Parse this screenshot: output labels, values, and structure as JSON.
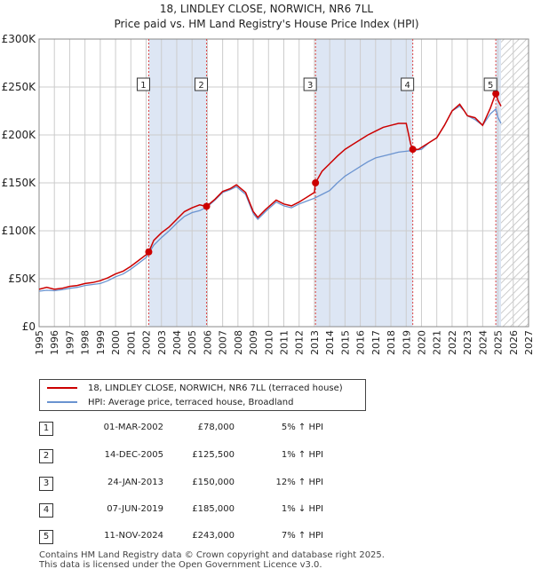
{
  "header": {
    "title": "18, LINDLEY CLOSE, NORWICH, NR6 7LL",
    "subtitle": "Price paid vs. HM Land Registry's House Price Index (HPI)"
  },
  "legend": {
    "property": "18, LINDLEY CLOSE, NORWICH, NR6 7LL (terraced house)",
    "hpi": "HPI: Average price, terraced house, Broadland"
  },
  "colors": {
    "property": "#cc0000",
    "hpi": "#6a93d0",
    "band": "#dde6f4",
    "grid": "#cccccc"
  },
  "transactions": [
    {
      "n": "1",
      "date": "01-MAR-2002",
      "price": "£78,000",
      "hpi": "5% ↑ HPI"
    },
    {
      "n": "2",
      "date": "14-DEC-2005",
      "price": "£125,500",
      "hpi": "1% ↑ HPI"
    },
    {
      "n": "3",
      "date": "24-JAN-2013",
      "price": "£150,000",
      "hpi": "12% ↑ HPI"
    },
    {
      "n": "4",
      "date": "07-JUN-2019",
      "price": "£185,000",
      "hpi": "1% ↓ HPI"
    },
    {
      "n": "5",
      "date": "11-NOV-2024",
      "price": "£243,000",
      "hpi": "7% ↑ HPI"
    }
  ],
  "footer": {
    "line1": "Contains HM Land Registry data © Crown copyright and database right 2025.",
    "line2": "This data is licensed under the Open Government Licence v3.0."
  },
  "chart_data": {
    "type": "line",
    "title": "18, LINDLEY CLOSE, NORWICH, NR6 7LL",
    "xlabel": "",
    "ylabel": "",
    "xlim": [
      1995,
      2027
    ],
    "ylim": [
      0,
      300000
    ],
    "x_ticks": [
      "1995",
      "1996",
      "1997",
      "1998",
      "1999",
      "2000",
      "2001",
      "2002",
      "2003",
      "2004",
      "2005",
      "2006",
      "2007",
      "2008",
      "2009",
      "2010",
      "2011",
      "2012",
      "2013",
      "2014",
      "2015",
      "2016",
      "2017",
      "2018",
      "2019",
      "2020",
      "2021",
      "2022",
      "2023",
      "2024",
      "2025",
      "2026",
      "2027"
    ],
    "y_ticks": [
      {
        "value": 0,
        "label": "£0"
      },
      {
        "value": 50000,
        "label": "£50K"
      },
      {
        "value": 100000,
        "label": "£100K"
      },
      {
        "value": 150000,
        "label": "£150K"
      },
      {
        "value": 200000,
        "label": "£200K"
      },
      {
        "value": 250000,
        "label": "£250K"
      },
      {
        "value": 300000,
        "label": "£300K"
      }
    ],
    "forecast_start": 2025.2,
    "series": [
      {
        "name": "18, LINDLEY CLOSE, NORWICH, NR6 7LL (terraced house)",
        "x": [
          1995.0,
          1995.5,
          1996.0,
          1996.5,
          1997.0,
          1997.5,
          1998.0,
          1998.5,
          1999.0,
          1999.5,
          2000.0,
          2000.5,
          2001.0,
          2001.5,
          2002.0,
          2002.17,
          2002.5,
          2003.0,
          2003.5,
          2004.0,
          2004.5,
          2005.0,
          2005.5,
          2005.95,
          2006.5,
          2007.0,
          2007.5,
          2007.9,
          2008.5,
          2009.0,
          2009.3,
          2009.8,
          2010.5,
          2011.0,
          2011.5,
          2012.0,
          2012.5,
          2013.0,
          2013.07,
          2013.5,
          2014.0,
          2014.5,
          2015.0,
          2015.5,
          2016.0,
          2016.5,
          2017.0,
          2017.5,
          2018.0,
          2018.5,
          2019.0,
          2019.3,
          2019.43,
          2019.8,
          2020.5,
          2021.0,
          2021.5,
          2022.0,
          2022.5,
          2022.8,
          2023.0,
          2023.5,
          2024.0,
          2024.5,
          2024.8,
          2024.86,
          2025.0,
          2025.2
        ],
        "values": [
          39000,
          41000,
          39000,
          40000,
          42000,
          43000,
          45000,
          46000,
          48000,
          51000,
          55000,
          58000,
          63000,
          69000,
          75000,
          78000,
          90000,
          98000,
          104000,
          112000,
          120000,
          124000,
          127000,
          125500,
          133000,
          141000,
          144000,
          148000,
          140000,
          120000,
          114000,
          122000,
          132000,
          128000,
          126000,
          130000,
          135000,
          140000,
          150000,
          162000,
          170000,
          178000,
          185000,
          190000,
          195000,
          200000,
          204000,
          208000,
          210000,
          212000,
          212000,
          190000,
          185000,
          185000,
          192000,
          197000,
          210000,
          225000,
          232000,
          225000,
          220000,
          218000,
          210000,
          228000,
          241000,
          243000,
          236000,
          230000
        ]
      },
      {
        "name": "HPI: Average price, terraced house, Broadland",
        "x": [
          1995.0,
          1995.5,
          1996.0,
          1996.5,
          1997.0,
          1997.5,
          1998.0,
          1998.5,
          1999.0,
          1999.5,
          2000.0,
          2000.5,
          2001.0,
          2001.5,
          2002.0,
          2002.5,
          2003.0,
          2003.5,
          2004.0,
          2004.5,
          2005.0,
          2005.5,
          2006.0,
          2006.5,
          2007.0,
          2007.5,
          2007.9,
          2008.5,
          2009.0,
          2009.3,
          2009.8,
          2010.5,
          2011.0,
          2011.5,
          2012.0,
          2012.5,
          2013.0,
          2013.5,
          2014.0,
          2014.5,
          2015.0,
          2015.5,
          2016.0,
          2016.5,
          2017.0,
          2017.5,
          2018.0,
          2018.5,
          2019.0,
          2019.5,
          2020.0,
          2020.5,
          2021.0,
          2021.5,
          2022.0,
          2022.5,
          2022.8,
          2023.0,
          2023.5,
          2024.0,
          2024.5,
          2024.86,
          2025.0,
          2025.2
        ],
        "values": [
          37000,
          38000,
          37500,
          38500,
          40000,
          41000,
          43000,
          44000,
          45000,
          48000,
          52000,
          55000,
          60000,
          66000,
          72000,
          85000,
          93000,
          100000,
          108000,
          115000,
          119000,
          121000,
          125000,
          132000,
          140000,
          143000,
          146000,
          138000,
          118000,
          112000,
          120000,
          130000,
          126000,
          124000,
          128000,
          131000,
          134000,
          138000,
          142000,
          150000,
          157000,
          162000,
          167000,
          172000,
          176000,
          178000,
          180000,
          182000,
          183000,
          184000,
          185000,
          192000,
          197000,
          210000,
          225000,
          230000,
          225000,
          220000,
          216000,
          210000,
          222000,
          227000,
          218000,
          212000
        ]
      }
    ],
    "annotations": [
      {
        "label": "1",
        "x": 2002.17,
        "value": 78000
      },
      {
        "label": "2",
        "x": 2005.95,
        "value": 125500
      },
      {
        "label": "3",
        "x": 2013.07,
        "value": 150000
      },
      {
        "label": "4",
        "x": 2019.43,
        "value": 185000
      },
      {
        "label": "5",
        "x": 2024.86,
        "value": 243000
      }
    ]
  }
}
